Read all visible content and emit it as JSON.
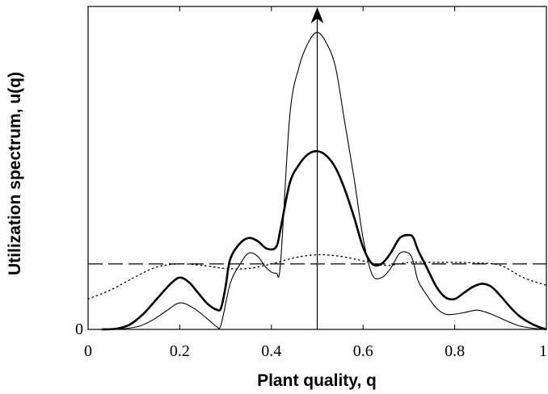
{
  "chart_data": {
    "type": "line",
    "xlabel": "Plant quality, q",
    "ylabel": "Utilization spectrum, u(q)",
    "xlim": [
      0,
      1
    ],
    "ylim": [
      0,
      1
    ],
    "x_ticks": [
      "0",
      "0.2",
      "0.4",
      "0.6",
      "0.8",
      "1"
    ],
    "y_ticks": [
      "0"
    ],
    "grid": false,
    "series": [
      {
        "style": "thin-solid",
        "x": [
          0.03,
          0.08,
          0.11,
          0.14,
          0.17,
          0.2,
          0.23,
          0.26,
          0.28,
          0.29,
          0.31,
          0.33,
          0.35,
          0.37,
          0.39,
          0.41,
          0.42,
          0.44,
          0.46,
          0.48,
          0.5,
          0.52,
          0.54,
          0.56,
          0.58,
          0.6,
          0.62,
          0.64,
          0.66,
          0.68,
          0.7,
          0.71,
          0.72,
          0.74,
          0.76,
          0.78,
          0.8,
          0.82,
          0.85,
          0.88,
          0.91,
          0.94,
          0.97,
          1.0
        ],
        "y": [
          0,
          0.003,
          0.01,
          0.03,
          0.06,
          0.087,
          0.07,
          0.035,
          0.01,
          0.015,
          0.15,
          0.21,
          0.25,
          0.24,
          0.2,
          0.185,
          0.22,
          0.7,
          0.86,
          0.94,
          0.975,
          0.94,
          0.86,
          0.68,
          0.5,
          0.3,
          0.18,
          0.17,
          0.2,
          0.25,
          0.25,
          0.22,
          0.16,
          0.11,
          0.07,
          0.05,
          0.05,
          0.055,
          0.063,
          0.05,
          0.03,
          0.012,
          0.004,
          0
        ]
      },
      {
        "style": "thick-solid",
        "x": [
          0.03,
          0.06,
          0.09,
          0.12,
          0.15,
          0.18,
          0.2,
          0.22,
          0.24,
          0.26,
          0.28,
          0.29,
          0.3,
          0.31,
          0.33,
          0.35,
          0.37,
          0.39,
          0.41,
          0.42,
          0.44,
          0.46,
          0.48,
          0.5,
          0.52,
          0.54,
          0.56,
          0.58,
          0.6,
          0.62,
          0.64,
          0.66,
          0.68,
          0.7,
          0.71,
          0.72,
          0.74,
          0.76,
          0.78,
          0.8,
          0.82,
          0.84,
          0.86,
          0.88,
          0.9,
          0.92,
          0.94,
          0.96,
          0.98,
          1.0
        ],
        "y": [
          0,
          0.002,
          0.015,
          0.05,
          0.1,
          0.15,
          0.17,
          0.155,
          0.12,
          0.085,
          0.065,
          0.07,
          0.14,
          0.23,
          0.28,
          0.3,
          0.29,
          0.265,
          0.27,
          0.33,
          0.48,
          0.54,
          0.575,
          0.585,
          0.57,
          0.53,
          0.46,
          0.37,
          0.27,
          0.215,
          0.215,
          0.25,
          0.3,
          0.31,
          0.3,
          0.26,
          0.2,
          0.14,
          0.105,
          0.1,
          0.12,
          0.14,
          0.15,
          0.14,
          0.11,
          0.075,
          0.045,
          0.025,
          0.01,
          0
        ]
      },
      {
        "style": "dotted",
        "x": [
          0,
          0.05,
          0.1,
          0.15,
          0.2,
          0.25,
          0.3,
          0.35,
          0.4,
          0.45,
          0.5,
          0.55,
          0.6,
          0.65,
          0.7,
          0.75,
          0.8,
          0.85,
          0.9,
          0.95,
          1.0
        ],
        "y": [
          0.1,
          0.13,
          0.17,
          0.205,
          0.215,
          0.21,
          0.2,
          0.2,
          0.215,
          0.235,
          0.245,
          0.24,
          0.225,
          0.21,
          0.22,
          0.22,
          0.22,
          0.218,
          0.21,
          0.17,
          0.145
        ]
      },
      {
        "style": "dashed",
        "x": [
          0,
          1
        ],
        "y": [
          0.215,
          0.215
        ]
      }
    ],
    "annotations": [
      {
        "type": "arrow",
        "x": 0.5,
        "y_from": 0,
        "y_to": 1.06,
        "direction": "up"
      }
    ]
  }
}
